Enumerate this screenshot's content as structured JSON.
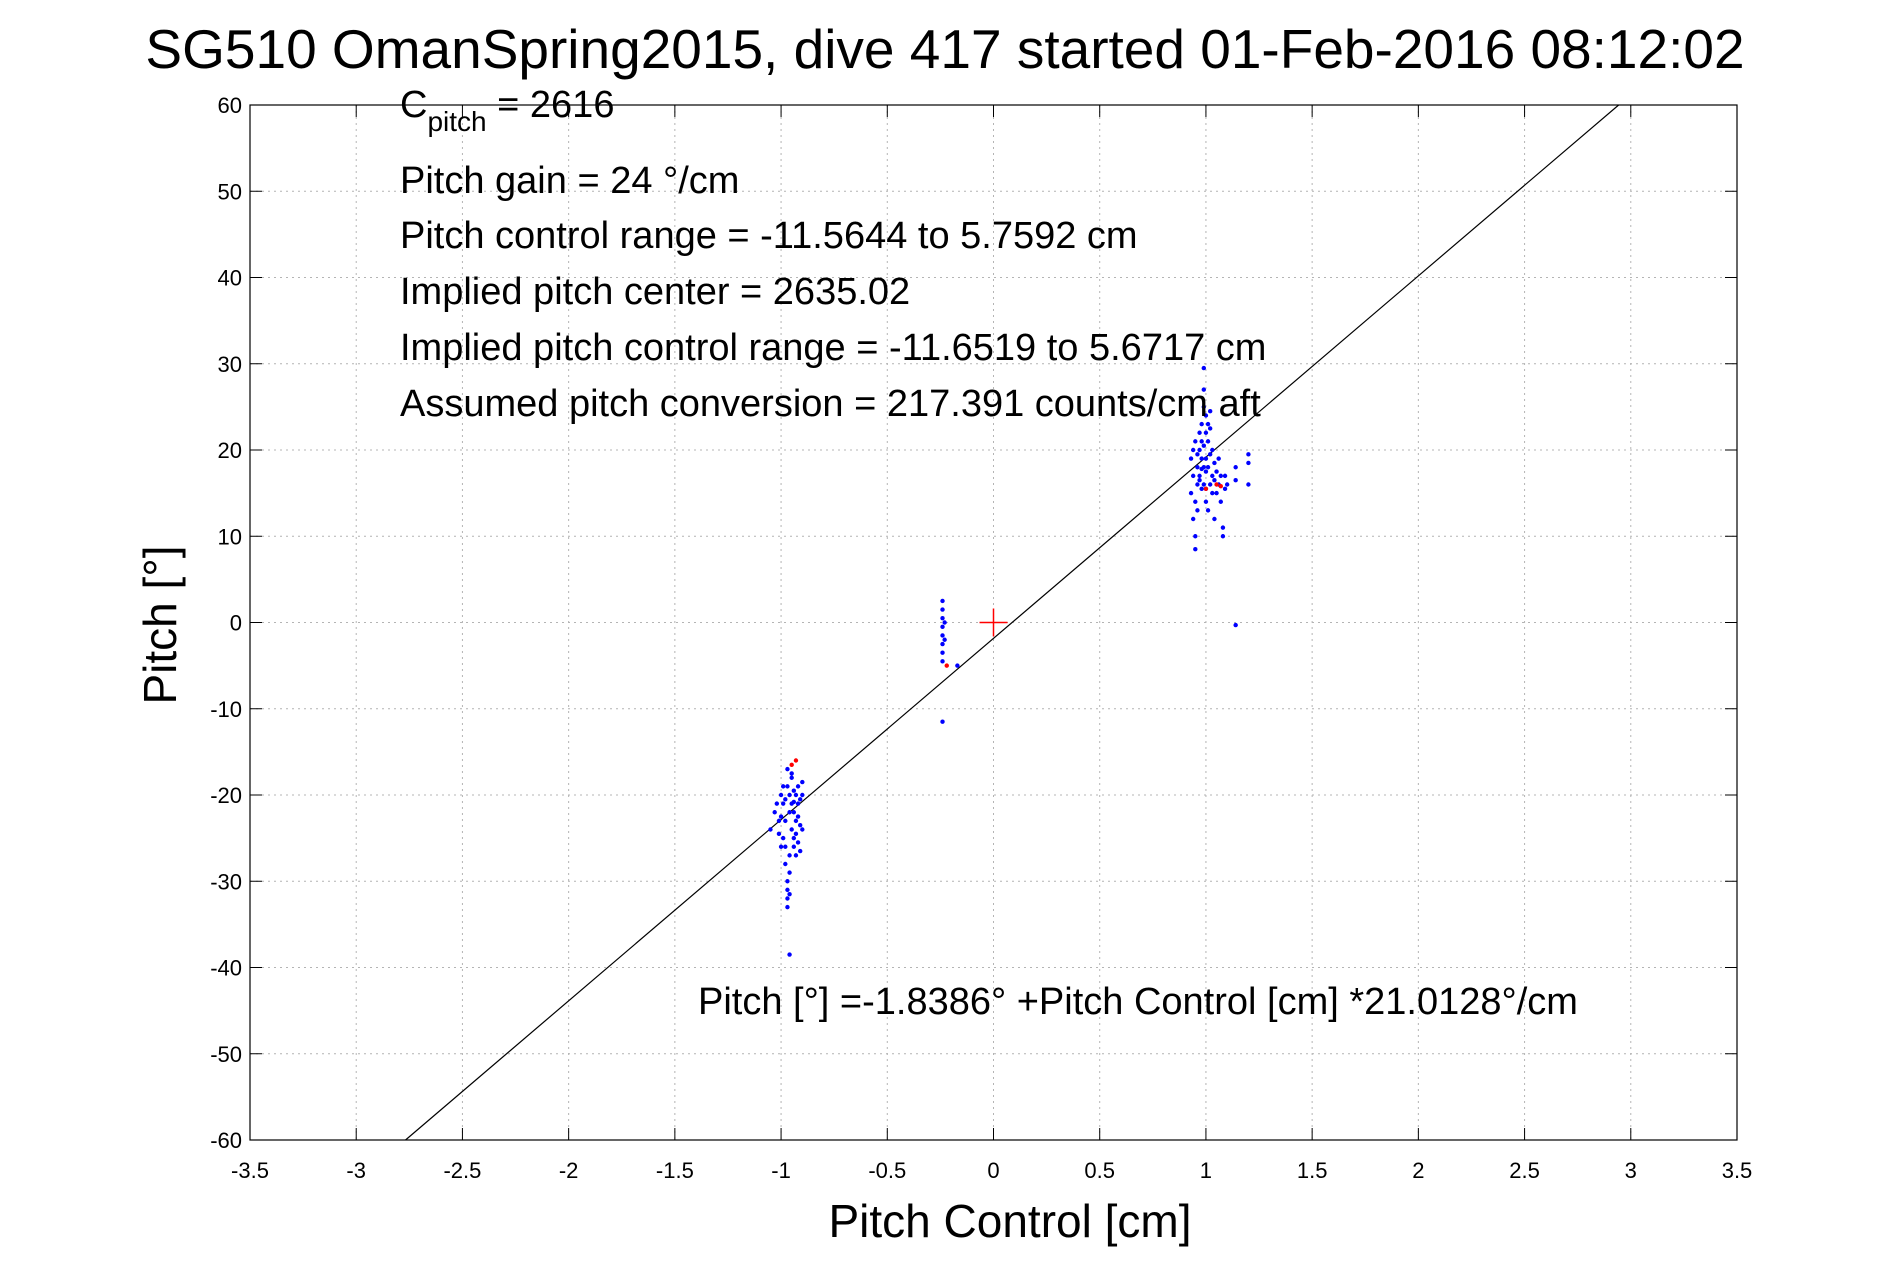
{
  "chart_data": {
    "type": "scatter",
    "title": "SG510 OmanSpring2015, dive 417 started 01-Feb-2016 08:12:02",
    "xlabel": "Pitch Control [cm]",
    "ylabel": "Pitch [°]",
    "xlim": [
      -3.5,
      3.5
    ],
    "ylim": [
      -60,
      60
    ],
    "xticks": [
      -3.5,
      -3,
      -2.5,
      -2,
      -1.5,
      -1,
      -0.5,
      0,
      0.5,
      1,
      1.5,
      2,
      2.5,
      3,
      3.5
    ],
    "xtick_labels": [
      "-3.5",
      "-3",
      "-2.5",
      "-2",
      "-1.5",
      "-1",
      "-0.5",
      "0",
      "0.5",
      "1",
      "1.5",
      "2",
      "2.5",
      "3",
      "3.5"
    ],
    "yticks": [
      -60,
      -50,
      -40,
      -30,
      -20,
      -10,
      0,
      10,
      20,
      30,
      40,
      50,
      60
    ],
    "ytick_labels": [
      "-60",
      "-50",
      "-40",
      "-30",
      "-20",
      "-10",
      "0",
      "10",
      "20",
      "30",
      "40",
      "50",
      "60"
    ],
    "grid": true,
    "annotations": {
      "c_pitch_main": "C",
      "c_pitch_sub": "pitch",
      "c_pitch_value": " = 2616",
      "pitch_gain": "Pitch gain = 24 °/cm",
      "pitch_control_range": "Pitch control range = -11.5644 to 5.7592 cm",
      "implied_pitch_center": "Implied pitch center = 2635.02",
      "implied_pitch_control_range": "Implied pitch control range = -11.6519 to 5.6717 cm",
      "assumed_pitch_conversion": "Assumed pitch conversion = 217.391 counts/cm aft",
      "fit_equation": "Pitch [°] =-1.8386° +Pitch Control [cm] *21.0128°/cm"
    },
    "fit": {
      "intercept": -1.8386,
      "slope": 21.0128
    },
    "center_marker": {
      "x": 0,
      "y": 0,
      "color": "#ff0000"
    },
    "colors": {
      "points": "#0000ff",
      "flagged_points": "#ff0000",
      "fit_line": "#000000",
      "grid": "#b4b4b4"
    },
    "series": [
      {
        "color": "#0000ff",
        "points": [
          [
            -1.05,
            -24
          ],
          [
            -1.03,
            -22
          ],
          [
            -1.02,
            -21
          ],
          [
            -1.01,
            -23
          ],
          [
            -1.0,
            -20
          ],
          [
            -1.0,
            -22.5
          ],
          [
            -0.99,
            -21
          ],
          [
            -0.99,
            -25
          ],
          [
            -0.98,
            -20.5
          ],
          [
            -0.98,
            -23
          ],
          [
            -0.98,
            -26
          ],
          [
            -0.98,
            -28
          ],
          [
            -0.97,
            -30
          ],
          [
            -0.97,
            -31
          ],
          [
            -0.97,
            -32
          ],
          [
            -0.97,
            -33
          ],
          [
            -0.96,
            -29
          ],
          [
            -0.96,
            -27
          ],
          [
            -0.96,
            -31.5
          ],
          [
            -0.96,
            -38.5
          ],
          [
            -0.97,
            -17
          ],
          [
            -0.97,
            -19
          ],
          [
            -0.96,
            -20
          ],
          [
            -0.95,
            -18
          ],
          [
            -0.95,
            -21
          ],
          [
            -0.95,
            -24
          ],
          [
            -0.94,
            -19.5
          ],
          [
            -0.94,
            -22
          ],
          [
            -0.94,
            -25
          ],
          [
            -0.94,
            -26
          ],
          [
            -0.93,
            -20
          ],
          [
            -0.93,
            -23
          ],
          [
            -0.93,
            -24.5
          ],
          [
            -0.93,
            -27
          ],
          [
            -0.92,
            -19
          ],
          [
            -0.92,
            -21
          ],
          [
            -0.92,
            -25.5
          ],
          [
            -0.92,
            -22.5
          ],
          [
            -0.91,
            -20.5
          ],
          [
            -0.91,
            -23.5
          ],
          [
            -0.91,
            -26.5
          ],
          [
            -0.9,
            -20
          ],
          [
            -0.9,
            -24
          ],
          [
            -0.9,
            -18.5
          ],
          [
            -0.99,
            -19
          ],
          [
            -1.0,
            -26
          ],
          [
            -1.01,
            -24.5
          ],
          [
            -0.95,
            -17.5
          ],
          [
            -0.96,
            -22
          ],
          [
            -0.94,
            -20.8
          ],
          [
            -0.24,
            2.5
          ],
          [
            -0.24,
            1.5
          ],
          [
            -0.24,
            0.5
          ],
          [
            -0.24,
            -0.5
          ],
          [
            -0.24,
            -1.5
          ],
          [
            -0.24,
            -2.5
          ],
          [
            -0.24,
            -3.5
          ],
          [
            -0.24,
            -4.5
          ],
          [
            -0.23,
            -2
          ],
          [
            -0.23,
            0
          ],
          [
            -0.24,
            -11.5
          ],
          [
            -0.17,
            -5
          ],
          [
            0.93,
            15
          ],
          [
            0.93,
            19
          ],
          [
            0.94,
            17
          ],
          [
            0.94,
            20
          ],
          [
            0.94,
            12
          ],
          [
            0.95,
            10
          ],
          [
            0.95,
            8.5
          ],
          [
            0.95,
            14
          ],
          [
            0.95,
            21
          ],
          [
            0.96,
            18
          ],
          [
            0.96,
            16
          ],
          [
            0.96,
            13
          ],
          [
            0.96,
            19.5
          ],
          [
            0.97,
            20
          ],
          [
            0.97,
            22
          ],
          [
            0.97,
            17
          ],
          [
            0.98,
            15.5
          ],
          [
            0.98,
            19
          ],
          [
            0.98,
            21
          ],
          [
            0.98,
            23
          ],
          [
            0.99,
            16
          ],
          [
            0.99,
            18
          ],
          [
            0.99,
            20.5
          ],
          [
            0.99,
            25
          ],
          [
            0.99,
            27
          ],
          [
            0.99,
            29.5
          ],
          [
            1.0,
            17.5
          ],
          [
            1.0,
            19
          ],
          [
            1.0,
            22
          ],
          [
            1.0,
            24
          ],
          [
            1.0,
            14
          ],
          [
            1.01,
            13
          ],
          [
            1.01,
            18
          ],
          [
            1.01,
            21
          ],
          [
            1.01,
            23
          ],
          [
            1.02,
            16
          ],
          [
            1.02,
            19.5
          ],
          [
            1.02,
            22.5
          ],
          [
            1.03,
            15
          ],
          [
            1.03,
            17
          ],
          [
            1.03,
            20
          ],
          [
            1.04,
            16.5
          ],
          [
            1.04,
            18.5
          ],
          [
            1.04,
            12
          ],
          [
            1.05,
            15
          ],
          [
            1.05,
            17.5
          ],
          [
            1.06,
            16
          ],
          [
            1.06,
            19
          ],
          [
            1.07,
            14
          ],
          [
            1.07,
            17
          ],
          [
            1.08,
            11
          ],
          [
            1.08,
            10
          ],
          [
            1.09,
            15.5
          ],
          [
            1.09,
            17
          ],
          [
            1.1,
            16
          ],
          [
            1.14,
            16.5
          ],
          [
            1.14,
            18
          ],
          [
            1.2,
            16
          ],
          [
            1.2,
            18.5
          ],
          [
            1.2,
            19.5
          ],
          [
            1.14,
            -0.3
          ],
          [
            0.97,
            16.5
          ],
          [
            1.0,
            15.5
          ],
          [
            0.98,
            17.8
          ],
          [
            1.02,
            24.5
          ]
        ]
      },
      {
        "color": "#ff0000",
        "points": [
          [
            -0.93,
            -16
          ],
          [
            -0.95,
            -16.5
          ],
          [
            -0.22,
            -5
          ],
          [
            1.0,
            15.5
          ],
          [
            1.05,
            16
          ],
          [
            1.07,
            15.8
          ]
        ]
      }
    ]
  }
}
